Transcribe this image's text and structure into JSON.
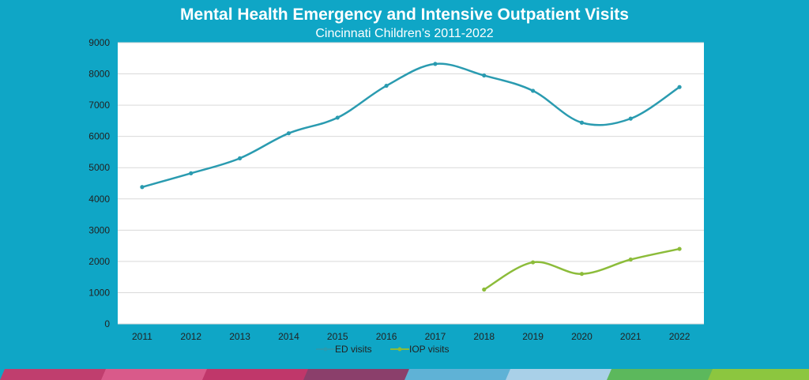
{
  "chart_data": {
    "type": "line",
    "title": "Mental Health Emergency and Intensive Outpatient Visits",
    "subtitle": "Cincinnati Children’s 2011-2022",
    "xlabel": "",
    "ylabel": "",
    "categories": [
      "2011",
      "2012",
      "2013",
      "2014",
      "2015",
      "2016",
      "2017",
      "2018",
      "2019",
      "2020",
      "2021",
      "2022"
    ],
    "ylim": [
      0,
      9000
    ],
    "yticks": [
      "0",
      "1000",
      "2000",
      "3000",
      "4000",
      "5000",
      "6000",
      "7000",
      "8000",
      "9000"
    ],
    "grid": true,
    "legend_position": "bottom",
    "series": [
      {
        "name": "ED visits",
        "color": "#2a9bb0",
        "values": [
          4380,
          4820,
          5300,
          6100,
          6600,
          7620,
          8320,
          7950,
          7460,
          6440,
          6570,
          7580
        ]
      },
      {
        "name": "IOP visits",
        "color": "#8cbc3a",
        "values": [
          null,
          null,
          null,
          null,
          null,
          null,
          null,
          1100,
          1970,
          1600,
          2060,
          2400
        ]
      }
    ]
  },
  "colors": {
    "background": "#0fa6c6",
    "gridline": "#d9d9d9",
    "band": [
      "#c03e6e",
      "#d95a8a",
      "#c0376a",
      "#8b3f6b",
      "#5fb2d6",
      "#a9d0e8",
      "#5cb85c",
      "#8cc63f"
    ]
  }
}
